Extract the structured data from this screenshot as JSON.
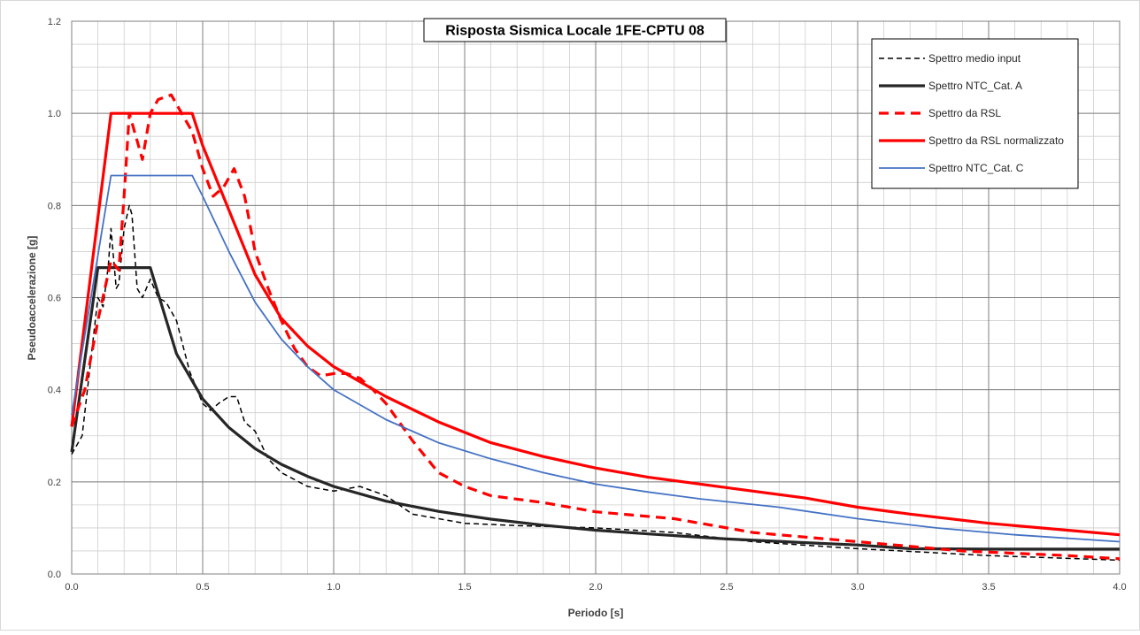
{
  "chart_data": {
    "type": "line",
    "title": "Risposta Sismica Locale 1FE-CPTU 08",
    "xlabel": "Periodo [s]",
    "ylabel": "Pseudoaccelerazione  [g]",
    "xlim": [
      0,
      4
    ],
    "ylim": [
      0,
      1.2
    ],
    "x_ticks": [
      "0.0",
      "0.5",
      "1.0",
      "1.5",
      "2.0",
      "2.5",
      "3.0",
      "3.5",
      "4.0"
    ],
    "y_ticks": [
      "0.0",
      "0.2",
      "0.4",
      "0.6",
      "0.8",
      "1.0",
      "1.2"
    ],
    "grid": true,
    "legend_position": "top-right",
    "series": [
      {
        "name": "Spettro medio input",
        "color": "#000000",
        "style": "dashed-thin",
        "x": [
          0,
          0.04,
          0.08,
          0.1,
          0.12,
          0.14,
          0.15,
          0.17,
          0.18,
          0.2,
          0.22,
          0.23,
          0.25,
          0.27,
          0.3,
          0.33,
          0.36,
          0.4,
          0.45,
          0.5,
          0.53,
          0.56,
          0.6,
          0.63,
          0.66,
          0.7,
          0.75,
          0.8,
          0.9,
          1.0,
          1.1,
          1.2,
          1.3,
          1.4,
          1.5,
          1.7,
          2.0,
          2.3,
          2.6,
          3.0,
          3.5,
          4.0
        ],
        "values": [
          0.26,
          0.3,
          0.5,
          0.6,
          0.58,
          0.67,
          0.75,
          0.62,
          0.63,
          0.75,
          0.8,
          0.78,
          0.62,
          0.6,
          0.64,
          0.6,
          0.59,
          0.55,
          0.44,
          0.37,
          0.355,
          0.37,
          0.385,
          0.385,
          0.33,
          0.31,
          0.25,
          0.22,
          0.19,
          0.18,
          0.19,
          0.17,
          0.13,
          0.12,
          0.11,
          0.105,
          0.1,
          0.09,
          0.07,
          0.055,
          0.04,
          0.03
        ]
      },
      {
        "name": "Spettro NTC_Cat. A",
        "color": "#262626",
        "style": "solid-thick",
        "x": [
          0,
          0.1,
          0.3,
          0.4,
          0.5,
          0.6,
          0.7,
          0.8,
          0.9,
          1.0,
          1.2,
          1.4,
          1.6,
          1.8,
          2.0,
          2.2,
          2.5,
          2.8,
          3.0,
          3.2,
          3.5,
          4.0
        ],
        "values": [
          0.265,
          0.665,
          0.665,
          0.478,
          0.38,
          0.318,
          0.272,
          0.238,
          0.212,
          0.19,
          0.158,
          0.136,
          0.119,
          0.106,
          0.095,
          0.087,
          0.076,
          0.068,
          0.063,
          0.055,
          0.054,
          0.054
        ]
      },
      {
        "name": "Spettro da RSL",
        "color": "#ff0000",
        "style": "dashed-thick",
        "x": [
          0,
          0.05,
          0.1,
          0.15,
          0.18,
          0.2,
          0.22,
          0.25,
          0.27,
          0.3,
          0.33,
          0.38,
          0.42,
          0.46,
          0.5,
          0.54,
          0.58,
          0.62,
          0.66,
          0.7,
          0.75,
          0.8,
          0.85,
          0.9,
          0.95,
          1.0,
          1.05,
          1.1,
          1.15,
          1.2,
          1.25,
          1.3,
          1.4,
          1.5,
          1.6,
          1.8,
          2.0,
          2.3,
          2.6,
          3.0,
          3.4,
          3.8,
          4.0
        ],
        "values": [
          0.32,
          0.4,
          0.55,
          0.68,
          0.66,
          0.82,
          1.0,
          0.94,
          0.9,
          1.0,
          1.03,
          1.04,
          1.0,
          0.96,
          0.88,
          0.82,
          0.84,
          0.88,
          0.82,
          0.7,
          0.62,
          0.55,
          0.49,
          0.45,
          0.43,
          0.435,
          0.435,
          0.425,
          0.4,
          0.37,
          0.33,
          0.29,
          0.22,
          0.19,
          0.17,
          0.155,
          0.135,
          0.12,
          0.09,
          0.07,
          0.05,
          0.04,
          0.033
        ]
      },
      {
        "name": "Spettro da RSL normalizzato",
        "color": "#ff0000",
        "style": "solid-thick",
        "x": [
          0,
          0.15,
          0.46,
          0.5,
          0.6,
          0.7,
          0.8,
          0.9,
          1.0,
          1.2,
          1.4,
          1.6,
          1.8,
          2.0,
          2.2,
          2.4,
          2.6,
          2.8,
          3.0,
          3.2,
          3.5,
          3.8,
          4.0
        ],
        "values": [
          0.32,
          1.0,
          1.0,
          0.93,
          0.79,
          0.65,
          0.555,
          0.495,
          0.45,
          0.385,
          0.33,
          0.285,
          0.255,
          0.23,
          0.21,
          0.195,
          0.18,
          0.165,
          0.145,
          0.13,
          0.11,
          0.095,
          0.085
        ]
      },
      {
        "name": "Spettro NTC_Cat. C",
        "color": "#4472c4",
        "style": "solid-thin",
        "x": [
          0,
          0.15,
          0.46,
          0.5,
          0.6,
          0.7,
          0.8,
          0.9,
          1.0,
          1.2,
          1.4,
          1.6,
          1.8,
          2.0,
          2.2,
          2.4,
          2.7,
          3.0,
          3.3,
          3.6,
          4.0
        ],
        "values": [
          0.345,
          0.865,
          0.865,
          0.82,
          0.7,
          0.59,
          0.51,
          0.45,
          0.4,
          0.335,
          0.285,
          0.25,
          0.22,
          0.195,
          0.178,
          0.163,
          0.145,
          0.12,
          0.1,
          0.085,
          0.07
        ]
      }
    ]
  }
}
